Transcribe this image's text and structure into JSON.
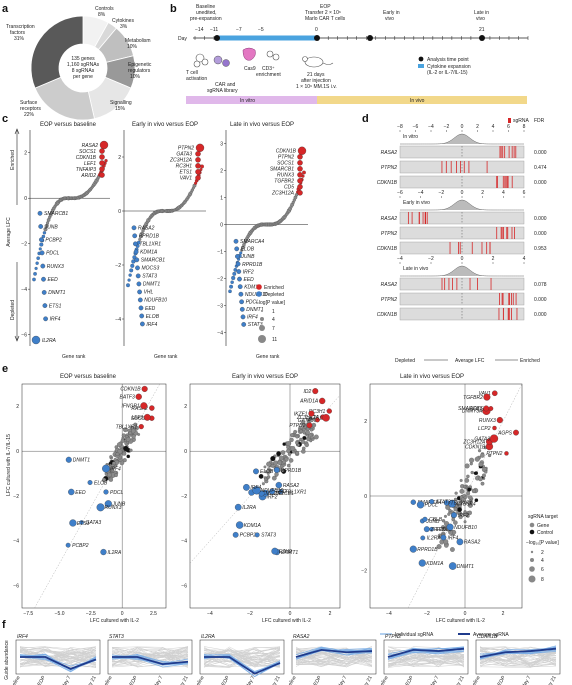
{
  "panel_labels": {
    "a": "a",
    "b": "b",
    "c": "c",
    "d": "d",
    "e": "e",
    "f": "f"
  },
  "panel_a": {
    "center_text": [
      "135 genes",
      "1,160 sgRNAs",
      "8 sgRNAs",
      "per gene"
    ],
    "slices": [
      {
        "label": "Controls",
        "pct": "8%",
        "value": 8,
        "color": "#f2f2f2"
      },
      {
        "label": "Cytokines",
        "pct": "3%",
        "value": 3,
        "color": "#d9d9d9"
      },
      {
        "label": "Metabolism",
        "pct": "10%",
        "value": 10,
        "color": "#bfbfbf"
      },
      {
        "label": "Epigenetic regulators",
        "pct": "10%",
        "value": 10,
        "color": "#999999"
      },
      {
        "label": "Signalling",
        "pct": "15%",
        "value": 15,
        "color": "#e6e6e6"
      },
      {
        "label": "Surface receptors",
        "pct": "22%",
        "value": 22,
        "color": "#cccccc"
      },
      {
        "label": "Transcription factors",
        "pct": "31%",
        "value": 31,
        "color": "#595959"
      }
    ]
  },
  "panel_b": {
    "day_label": "Day",
    "day_ticks": [
      "−14",
      "−11",
      "−7",
      "−5",
      "0",
      "21"
    ],
    "baseline_label": [
      "Baseline",
      "unedited,",
      "pre-expansion"
    ],
    "eop_label": [
      "EOP",
      "Transfer 2 × 10⁶",
      "Marlo CAR T cells"
    ],
    "early_label": [
      "Early in",
      "vivo"
    ],
    "late_label": [
      "Late in",
      "vivo"
    ],
    "t_activation": [
      "T cell",
      "activation"
    ],
    "car_label": [
      "CAR and",
      "sgRNA library"
    ],
    "cas9_label": "Cas9",
    "cd3_label": [
      "CD3⁺",
      "enrichment"
    ],
    "mouse_label": [
      "21 days",
      "after injection",
      "1 × 10⁶ MM.1S i.v."
    ],
    "legend": [
      "Analysis time point",
      "Cytokine expansion",
      "(IL-2 or IL-7/IL-15)"
    ],
    "bar_invitro": "In vitro",
    "bar_invivo": "In vivo"
  },
  "panel_c": {
    "titles": [
      "EOP versus baseline",
      "Early in vivo versus EOP",
      "Late in vivo versus EOP"
    ],
    "ylabel": "Average LFC",
    "xlabel": "Gene rank",
    "enriched": "Enriched",
    "depleted": "Depleted",
    "yticks1": [
      "2",
      "0",
      "−2",
      "−4",
      "−6"
    ],
    "yticks2": [
      "2",
      "0",
      "−2",
      "−4"
    ],
    "yticks3": [
      "3",
      "2",
      "1",
      "0",
      "−1",
      "−2",
      "−3",
      "−4"
    ],
    "genes_up_1": [
      "RASA2",
      "SOCS1",
      "CDKN1B",
      "LEF1",
      "TNFAIP3",
      "ARID2"
    ],
    "genes_dn_1": [
      "SMARCB1",
      "JUNB",
      "PCBP2",
      "PDCL",
      "RUNX3",
      "EED",
      "DNMT1",
      "ETS1",
      "IRF4"
    ],
    "genes_dn_1b": "IL2RA",
    "genes_up_2": [
      "PTPN2",
      "GATA3",
      "ZC3H12A",
      "RC3H1",
      "ETS1",
      "VAV1"
    ],
    "genes_dn_2": [
      "RASA2",
      "RPRD1B",
      "TBL1XR1",
      "KDM1A",
      "SMARCB1",
      "MOCS3",
      "STAT3",
      "DNMT1",
      "VHL",
      "NDUFB10",
      "EED",
      "ELOB",
      "IRF4"
    ],
    "genes_up_3": [
      "CDKN1B",
      "PTPN2",
      "SOCS1",
      "SMARCB1",
      "RUNX3",
      "TGFBR2",
      "CD5",
      "ZC3H12A"
    ],
    "genes_dn_3": [
      "SMARCA4",
      "ELOB",
      "JUNB",
      "RPRD1B",
      "IRF2",
      "EED",
      "KDM1A",
      "NDUFB10",
      "PDCL",
      "DNMT1",
      "IRF4",
      "STAT3"
    ],
    "legend": [
      "Enriched",
      "Depleted",
      "−log[P value]",
      "1",
      "4",
      "7",
      "11"
    ]
  },
  "panel_d": {
    "sgRNA": "sgRNA",
    "fdr": "FDR",
    "sections": [
      {
        "title": "In vitro",
        "rows": [
          {
            "gene": "RASA2",
            "fdr": "0.000"
          },
          {
            "gene": "PTPN2",
            "fdr": "0.474"
          },
          {
            "gene": "CDKN1B",
            "fdr": "0.000"
          }
        ]
      },
      {
        "title": "Early in vivo",
        "rows": [
          {
            "gene": "RASA2",
            "fdr": "0.000"
          },
          {
            "gene": "PTPN2",
            "fdr": "0.000"
          },
          {
            "gene": "CDKN1B",
            "fdr": "0.953"
          }
        ]
      },
      {
        "title": "Late in vivo",
        "rows": [
          {
            "gene": "RASA2",
            "fdr": "0.078"
          },
          {
            "gene": "PTPN2",
            "fdr": "0.000"
          },
          {
            "gene": "CDKN1B",
            "fdr": "0.000"
          }
        ]
      }
    ],
    "ticks1": [
      "−8",
      "−6",
      "−4",
      "−2",
      "0",
      "2",
      "4",
      "6",
      "8"
    ],
    "ticks2": [
      "−6",
      "−4",
      "−2",
      "0",
      "2",
      "4",
      "6"
    ],
    "ticks3": [
      "−4",
      "−2",
      "0",
      "2",
      "4"
    ],
    "xlabel": [
      "Depleted",
      "Average LFC",
      "Enriched"
    ]
  },
  "panel_e": {
    "titles": [
      "EOP versus baseline",
      "Early in vivo versus EOP",
      "Late in vivo versus EOP"
    ],
    "ylabel": "LFC cultured with IL-7/IL-15",
    "xlabel": "LFC cultured with IL-2",
    "genes_1": [
      "RASA2",
      "BATF3",
      "IFNGR1",
      "SOCS1",
      "LEF1",
      "TBL1XR1",
      "CDKN1B",
      "JUNB",
      "IL2RA",
      "PCBP2",
      "GATA3",
      "ETS1",
      "EED",
      "IRF4",
      "PDCL",
      "RUNX3",
      "DNMT1",
      "ELOB"
    ],
    "genes_2": [
      "PTPN2",
      "ZC3H12A",
      "ID2",
      "RC3H1",
      "GATA3",
      "ARID1A",
      "ETS1",
      "IKZF1",
      "IRF2",
      "PCBP2",
      "DNMT1",
      "SMARCB1",
      "TBL1XR1",
      "VHL",
      "STAT3",
      "RPRD1B",
      "KDM1A",
      "EZH2",
      "MOCS3",
      "RASA2",
      "ELOB",
      "EED",
      "NDUFB10",
      "IL2RA",
      "IRF4"
    ],
    "genes_3": [
      "PTPN2",
      "CDKN1B",
      "ZC3H12A",
      "DNMT3A",
      "VAV1",
      "LCP2",
      "RUNX3",
      "SOCS1",
      "AGPS",
      "TGFBR2",
      "SMARCB1",
      "GATA3",
      "DNMT1",
      "IRF2",
      "EED",
      "SMARCA4",
      "ZFP36L1",
      "CYB5R4",
      "JUNB",
      "RASA2",
      "NDUFB10",
      "PDCL",
      "TBL1XR1",
      "RPRD1B",
      "IRF4",
      "KDM1A",
      "CBLB",
      "STAT3",
      "IL2RA"
    ],
    "xt1": [
      "−7.5",
      "−5.0",
      "−2.5",
      "0",
      "2.5"
    ],
    "yt1": [
      "2",
      "0",
      "−2",
      "−4",
      "−6"
    ],
    "xt2": [
      "−4",
      "−2",
      "0",
      "2"
    ],
    "yt2": [
      "2",
      "0",
      "−2",
      "−4",
      "−6"
    ],
    "xt3": [
      "−4",
      "−2",
      "0",
      "2"
    ],
    "yt3": [
      "2",
      "0",
      "−2"
    ],
    "legend": [
      "sgRNA target",
      "Gene",
      "Control",
      "−log₁₀[P value]",
      "2",
      "4",
      "6",
      "8"
    ]
  },
  "panel_f": {
    "ylabel": "Guide abundance",
    "legend": [
      "Individual sgRNA",
      "Average sgRNA"
    ],
    "genes": [
      "IRF4",
      "STAT3",
      "IL2RA",
      "RASA2",
      "PTPN2",
      "CDKN1B"
    ],
    "xticks": [
      "Baseline",
      "EOP",
      "In vivo day 7",
      "In vivo day 21"
    ]
  },
  "colors": {
    "enriched": "#d62728",
    "depleted": "#3f7fc9",
    "car": "#e377c2",
    "cytokine": "#4aa3df",
    "invitro": "#e0b8ea",
    "invivo": "#f2d88a"
  }
}
